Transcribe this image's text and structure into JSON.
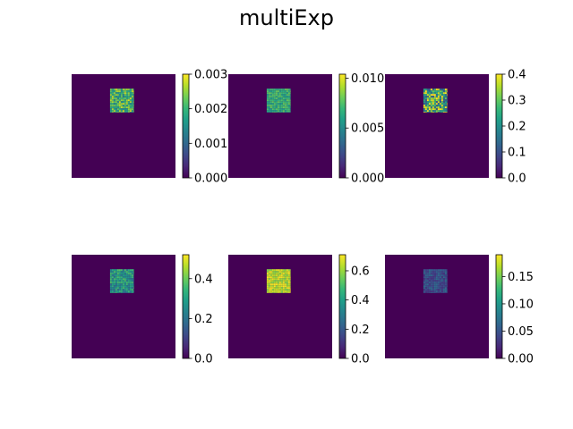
{
  "figure": {
    "title": "multiExp"
  },
  "colormap": [
    "#440154",
    "#482878",
    "#3e4989",
    "#31688e",
    "#26828e",
    "#1f9e89",
    "#35b779",
    "#6ece58",
    "#b5de2b",
    "#fde725"
  ],
  "chart_data": [
    {
      "type": "heatmap",
      "title": "",
      "grid": false,
      "background_value": 0.0,
      "patch": {
        "x_range": [
          0.37,
          0.6
        ],
        "y_range": [
          0.14,
          0.37
        ],
        "mean": 0.0021,
        "spread": 0.0007
      },
      "colorbar": {
        "vmin": 0.0,
        "vmax": 0.003,
        "ticks": [
          0.0,
          0.001,
          0.002,
          0.003
        ],
        "tick_labels": [
          "0.000",
          "0.001",
          "0.002",
          "0.003"
        ]
      }
    },
    {
      "type": "heatmap",
      "title": "",
      "grid": false,
      "background_value": 0.0,
      "patch": {
        "x_range": [
          0.37,
          0.6
        ],
        "y_range": [
          0.14,
          0.37
        ],
        "mean": 0.0068,
        "spread": 0.0012
      },
      "colorbar": {
        "vmin": 0.0,
        "vmax": 0.0104,
        "ticks": [
          0.0,
          0.005,
          0.01
        ],
        "tick_labels": [
          "0.000",
          "0.005",
          "0.010"
        ]
      }
    },
    {
      "type": "heatmap",
      "title": "",
      "grid": false,
      "background_value": 0.0,
      "patch": {
        "x_range": [
          0.37,
          0.6
        ],
        "y_range": [
          0.14,
          0.37
        ],
        "mean": 0.27,
        "spread": 0.16
      },
      "colorbar": {
        "vmin": 0.0,
        "vmax": 0.4,
        "ticks": [
          0.0,
          0.1,
          0.2,
          0.3,
          0.4
        ],
        "tick_labels": [
          "0.0",
          "0.1",
          "0.2",
          "0.3",
          "0.4"
        ]
      }
    },
    {
      "type": "heatmap",
      "title": "",
      "grid": false,
      "background_value": 0.0,
      "patch": {
        "x_range": [
          0.37,
          0.6
        ],
        "y_range": [
          0.14,
          0.37
        ],
        "mean": 0.29,
        "spread": 0.09
      },
      "colorbar": {
        "vmin": 0.0,
        "vmax": 0.52,
        "ticks": [
          0.0,
          0.2,
          0.4
        ],
        "tick_labels": [
          "0.0",
          "0.2",
          "0.4"
        ]
      }
    },
    {
      "type": "heatmap",
      "title": "",
      "grid": false,
      "background_value": 0.0,
      "patch": {
        "x_range": [
          0.37,
          0.6
        ],
        "y_range": [
          0.14,
          0.37
        ],
        "mean": 0.64,
        "spread": 0.07
      },
      "colorbar": {
        "vmin": 0.0,
        "vmax": 0.71,
        "ticks": [
          0.0,
          0.2,
          0.4,
          0.6
        ],
        "tick_labels": [
          "0.0",
          "0.2",
          "0.4",
          "0.6"
        ]
      }
    },
    {
      "type": "heatmap",
      "title": "",
      "grid": false,
      "background_value": 0.0,
      "patch": {
        "x_range": [
          0.37,
          0.6
        ],
        "y_range": [
          0.14,
          0.37
        ],
        "mean": 0.05,
        "spread": 0.02
      },
      "colorbar": {
        "vmin": 0.0,
        "vmax": 0.19,
        "ticks": [
          0.0,
          0.05,
          0.1,
          0.15
        ],
        "tick_labels": [
          "0.00",
          "0.05",
          "0.10",
          "0.15"
        ]
      }
    }
  ]
}
